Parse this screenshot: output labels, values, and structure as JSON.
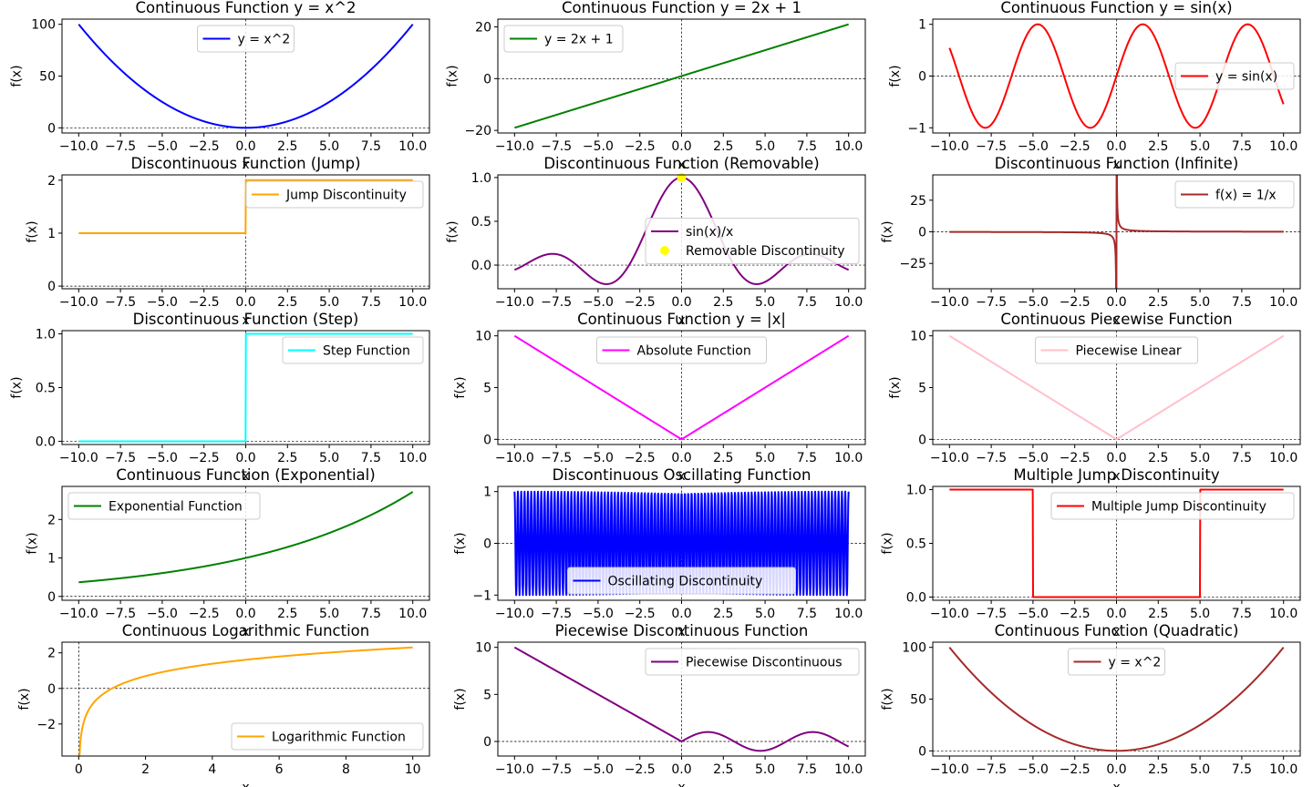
{
  "chart_data": [
    {
      "type": "line",
      "title": "Continuous Function y = x^2",
      "xlabel": "x",
      "ylabel": "f(x)",
      "fn": "square",
      "xlim": [
        -11,
        11
      ],
      "ylim": [
        -5,
        105
      ],
      "xticks": [
        -10,
        -7.5,
        -5,
        -2.5,
        0,
        2.5,
        5,
        7.5,
        10
      ],
      "xtick_labels": [
        "−10.0",
        "−7.5",
        "−5.0",
        "−2.5",
        "0.0",
        "2.5",
        "5.0",
        "7.5",
        "10.0"
      ],
      "yticks": [
        0,
        50,
        100
      ],
      "ytick_labels": [
        "0",
        "50",
        "100"
      ],
      "axes_ref": {
        "x": 0,
        "y": 0
      },
      "legend_loc": "upper-center",
      "series": [
        {
          "name": "y = x^2",
          "color": "#0000ff"
        }
      ]
    },
    {
      "type": "line",
      "title": "Continuous Function y = 2x + 1",
      "xlabel": "x",
      "ylabel": "f(x)",
      "fn": "linear",
      "xlim": [
        -11,
        11
      ],
      "ylim": [
        -21,
        23
      ],
      "xticks": [
        -10,
        -7.5,
        -5,
        -2.5,
        0,
        2.5,
        5,
        7.5,
        10
      ],
      "xtick_labels": [
        "−10.0",
        "−7.5",
        "−5.0",
        "−2.5",
        "0.0",
        "2.5",
        "5.0",
        "7.5",
        "10.0"
      ],
      "yticks": [
        -20,
        0,
        20
      ],
      "ytick_labels": [
        "−20",
        "0",
        "20"
      ],
      "axes_ref": {
        "x": 0,
        "y": 0
      },
      "legend_loc": "upper-left",
      "series": [
        {
          "name": "y = 2x + 1",
          "color": "#008000"
        }
      ]
    },
    {
      "type": "line",
      "title": "Continuous Function y = sin(x)",
      "xlabel": "x",
      "ylabel": "f(x)",
      "fn": "sin",
      "xlim": [
        -11,
        11
      ],
      "ylim": [
        -1.1,
        1.1
      ],
      "xticks": [
        -10,
        -7.5,
        -5,
        -2.5,
        0,
        2.5,
        5,
        7.5,
        10
      ],
      "xtick_labels": [
        "−10.0",
        "−7.5",
        "−5.0",
        "−2.5",
        "0.0",
        "2.5",
        "5.0",
        "7.5",
        "10.0"
      ],
      "yticks": [
        -1,
        0,
        1
      ],
      "ytick_labels": [
        "−1",
        "0",
        "1"
      ],
      "axes_ref": {
        "x": 0,
        "y": 0
      },
      "legend_loc": "center-right",
      "series": [
        {
          "name": "y = sin(x)",
          "color": "#ff0000"
        }
      ]
    },
    {
      "type": "line",
      "title": "Discontinuous Function (Jump)",
      "xlabel": "x",
      "ylabel": "f(x)",
      "fn": "jump",
      "xlim": [
        -11,
        11
      ],
      "ylim": [
        -0.05,
        2.1
      ],
      "xticks": [
        -10,
        -7.5,
        -5,
        -2.5,
        0,
        2.5,
        5,
        7.5,
        10
      ],
      "xtick_labels": [
        "−10.0",
        "−7.5",
        "−5.0",
        "−2.5",
        "0.0",
        "2.5",
        "5.0",
        "7.5",
        "10.0"
      ],
      "yticks": [
        0,
        1,
        2
      ],
      "ytick_labels": [
        "0",
        "1",
        "2"
      ],
      "axes_ref": {
        "x": 0,
        "y": 0
      },
      "legend_loc": "upper-right",
      "series": [
        {
          "name": "Jump Discontinuity",
          "color": "#ffa500"
        }
      ]
    },
    {
      "type": "line",
      "title": "Discontinuous Function (Removable)",
      "xlabel": "x",
      "ylabel": "f(x)",
      "fn": "sinc",
      "xlim": [
        -11,
        11
      ],
      "ylim": [
        -0.27,
        1.03
      ],
      "xticks": [
        -10,
        -7.5,
        -5,
        -2.5,
        0,
        2.5,
        5,
        7.5,
        10
      ],
      "xtick_labels": [
        "−10.0",
        "−7.5",
        "−5.0",
        "−2.5",
        "0.0",
        "2.5",
        "5.0",
        "7.5",
        "10.0"
      ],
      "yticks": [
        0,
        0.5,
        1
      ],
      "ytick_labels": [
        "0.0",
        "0.5",
        "1.0"
      ],
      "axes_ref": {
        "x": 0,
        "y": 0
      },
      "legend_loc": "center-right",
      "series": [
        {
          "name": "sin(x)/x",
          "color": "#800080"
        },
        {
          "name": "Removable Discontinuity",
          "color": "#ffff00",
          "kind": "scatter",
          "points": [
            [
              0,
              1
            ]
          ]
        }
      ]
    },
    {
      "type": "line",
      "title": "Discontinuous Function (Infinite)",
      "xlabel": "x",
      "ylabel": "f(x)",
      "fn": "reciprocal",
      "xlim": [
        -11,
        11
      ],
      "ylim": [
        -45,
        45
      ],
      "xticks": [
        -10,
        -7.5,
        -5,
        -2.5,
        0,
        2.5,
        5,
        7.5,
        10
      ],
      "xtick_labels": [
        "−10.0",
        "−7.5",
        "−5.0",
        "−2.5",
        "0.0",
        "2.5",
        "5.0",
        "7.5",
        "10.0"
      ],
      "yticks": [
        -25,
        0,
        25
      ],
      "ytick_labels": [
        "−25",
        "0",
        "25"
      ],
      "axes_ref": {
        "x": 0,
        "y": 0
      },
      "legend_loc": "upper-right",
      "series": [
        {
          "name": "f(x) = 1/x",
          "color": "#a52a2a"
        }
      ]
    },
    {
      "type": "line",
      "title": "Discontinuous Function (Step)",
      "xlabel": "x",
      "ylabel": "f(x)",
      "fn": "step",
      "xlim": [
        -11,
        11
      ],
      "ylim": [
        -0.03,
        1.03
      ],
      "xticks": [
        -10,
        -7.5,
        -5,
        -2.5,
        0,
        2.5,
        5,
        7.5,
        10
      ],
      "xtick_labels": [
        "−10.0",
        "−7.5",
        "−5.0",
        "−2.5",
        "0.0",
        "2.5",
        "5.0",
        "7.5",
        "10.0"
      ],
      "yticks": [
        0,
        0.5,
        1
      ],
      "ytick_labels": [
        "0.0",
        "0.5",
        "1.0"
      ],
      "axes_ref": {
        "x": 0,
        "y": 0
      },
      "legend_loc": "upper-right",
      "series": [
        {
          "name": "Step Function",
          "color": "#00ffff"
        }
      ]
    },
    {
      "type": "line",
      "title": "Continuous Function y = |x|",
      "xlabel": "x",
      "ylabel": "f(x)",
      "fn": "abs",
      "xlim": [
        -11,
        11
      ],
      "ylim": [
        -0.5,
        10.5
      ],
      "xticks": [
        -10,
        -7.5,
        -5,
        -2.5,
        0,
        2.5,
        5,
        7.5,
        10
      ],
      "xtick_labels": [
        "−10.0",
        "−7.5",
        "−5.0",
        "−2.5",
        "0.0",
        "2.5",
        "5.0",
        "7.5",
        "10.0"
      ],
      "yticks": [
        0,
        5,
        10
      ],
      "ytick_labels": [
        "0",
        "5",
        "10"
      ],
      "axes_ref": {
        "x": 0,
        "y": 0
      },
      "legend_loc": "upper-center",
      "series": [
        {
          "name": "Absolute Function",
          "color": "#ff00ff"
        }
      ]
    },
    {
      "type": "line",
      "title": "Continuous Piecewise Function",
      "xlabel": "x",
      "ylabel": "f(x)",
      "fn": "abs",
      "xlim": [
        -11,
        11
      ],
      "ylim": [
        -0.5,
        10.5
      ],
      "xticks": [
        -10,
        -7.5,
        -5,
        -2.5,
        0,
        2.5,
        5,
        7.5,
        10
      ],
      "xtick_labels": [
        "−10.0",
        "−7.5",
        "−5.0",
        "−2.5",
        "0.0",
        "2.5",
        "5.0",
        "7.5",
        "10.0"
      ],
      "yticks": [
        0,
        5,
        10
      ],
      "ytick_labels": [
        "0",
        "5",
        "10"
      ],
      "axes_ref": {
        "x": 0,
        "y": 0
      },
      "legend_loc": "upper-center",
      "series": [
        {
          "name": "Piecewise Linear",
          "color": "#ffc0cb"
        }
      ]
    },
    {
      "type": "line",
      "title": "Continuous Function (Exponential)",
      "xlabel": "x",
      "ylabel": "f(x)",
      "fn": "exp",
      "xlim": [
        -11,
        11
      ],
      "ylim": [
        -0.1,
        2.86
      ],
      "xticks": [
        -10,
        -7.5,
        -5,
        -2.5,
        0,
        2.5,
        5,
        7.5,
        10
      ],
      "xtick_labels": [
        "−10.0",
        "−7.5",
        "−5.0",
        "−2.5",
        "0.0",
        "2.5",
        "5.0",
        "7.5",
        "10.0"
      ],
      "yticks": [
        0,
        1,
        2
      ],
      "ytick_labels": [
        "0",
        "1",
        "2"
      ],
      "axes_ref": {
        "x": 0,
        "y": 0
      },
      "legend_loc": "upper-left",
      "series": [
        {
          "name": "Exponential Function",
          "color": "#008000"
        }
      ]
    },
    {
      "type": "line",
      "title": "Discontinuous Oscillating Function",
      "xlabel": "x",
      "ylabel": "f(x)",
      "fn": "oscillating",
      "xlim": [
        -11,
        11
      ],
      "ylim": [
        -1.1,
        1.1
      ],
      "xticks": [
        -10,
        -7.5,
        -5,
        -2.5,
        0,
        2.5,
        5,
        7.5,
        10
      ],
      "xtick_labels": [
        "−10.0",
        "−7.5",
        "−5.0",
        "−2.5",
        "0.0",
        "2.5",
        "5.0",
        "7.5",
        "10.0"
      ],
      "yticks": [
        -1,
        0,
        1
      ],
      "ytick_labels": [
        "−1",
        "0",
        "1"
      ],
      "axes_ref": {
        "x": 0,
        "y": 0
      },
      "legend_loc": "lower-center",
      "series": [
        {
          "name": "Oscillating Discontinuity",
          "color": "#0000ff"
        }
      ]
    },
    {
      "type": "line",
      "title": "Multiple Jump Discontinuity",
      "xlabel": "x",
      "ylabel": "f(x)",
      "fn": "multijump",
      "xlim": [
        -11,
        11
      ],
      "ylim": [
        -0.03,
        1.03
      ],
      "xticks": [
        -10,
        -7.5,
        -5,
        -2.5,
        0,
        2.5,
        5,
        7.5,
        10
      ],
      "xtick_labels": [
        "−10.0",
        "−7.5",
        "−5.0",
        "−2.5",
        "0.0",
        "2.5",
        "5.0",
        "7.5",
        "10.0"
      ],
      "yticks": [
        0,
        0.5,
        1
      ],
      "ytick_labels": [
        "0.0",
        "0.5",
        "1.0"
      ],
      "axes_ref": {
        "x": 0,
        "y": 0
      },
      "legend_loc": "upper-right",
      "series": [
        {
          "name": "Multiple Jump Discontinuity",
          "color": "#ff0000"
        }
      ]
    },
    {
      "type": "line",
      "title": "Continuous Logarithmic Function",
      "xlabel": "x",
      "ylabel": "f(x)",
      "fn": "log",
      "xlim": [
        -0.5,
        10.5
      ],
      "ylim": [
        -3.8,
        2.6
      ],
      "xticks": [
        0,
        2,
        4,
        6,
        8,
        10
      ],
      "xtick_labels": [
        "0",
        "2",
        "4",
        "6",
        "8",
        "10"
      ],
      "yticks": [
        -2,
        0,
        2
      ],
      "ytick_labels": [
        "−2",
        "0",
        "2"
      ],
      "axes_ref": {
        "x": 0,
        "y": 0
      },
      "legend_loc": "lower-right",
      "series": [
        {
          "name": "Logarithmic Function",
          "color": "#ffa500"
        }
      ]
    },
    {
      "type": "line",
      "title": "Piecewise Discontinuous Function",
      "xlabel": "x",
      "ylabel": "f(x)",
      "fn": "piecewise_sin",
      "xlim": [
        -11,
        11
      ],
      "ylim": [
        -1.55,
        10.55
      ],
      "xticks": [
        -10,
        -7.5,
        -5,
        -2.5,
        0,
        2.5,
        5,
        7.5,
        10
      ],
      "xtick_labels": [
        "−10.0",
        "−7.5",
        "−5.0",
        "−2.5",
        "0.0",
        "2.5",
        "5.0",
        "7.5",
        "10.0"
      ],
      "yticks": [
        0,
        5,
        10
      ],
      "ytick_labels": [
        "0",
        "5",
        "10"
      ],
      "axes_ref": {
        "x": 0,
        "y": 0
      },
      "legend_loc": "upper-right",
      "series": [
        {
          "name": "Piecewise Discontinuous",
          "color": "#800080"
        }
      ]
    },
    {
      "type": "line",
      "title": "Continuous Function (Quadratic)",
      "xlabel": "x",
      "ylabel": "f(x)",
      "fn": "square",
      "xlim": [
        -11,
        11
      ],
      "ylim": [
        -5,
        105
      ],
      "xticks": [
        -10,
        -7.5,
        -5,
        -2.5,
        0,
        2.5,
        5,
        7.5,
        10
      ],
      "xtick_labels": [
        "−10.0",
        "−7.5",
        "−5.0",
        "−2.5",
        "0.0",
        "2.5",
        "5.0",
        "7.5",
        "10.0"
      ],
      "yticks": [
        0,
        50,
        100
      ],
      "ytick_labels": [
        "0",
        "50",
        "100"
      ],
      "axes_ref": {
        "x": 0,
        "y": 0
      },
      "legend_loc": "upper-center",
      "series": [
        {
          "name": "y = x^2",
          "color": "#a52a2a"
        }
      ]
    }
  ]
}
